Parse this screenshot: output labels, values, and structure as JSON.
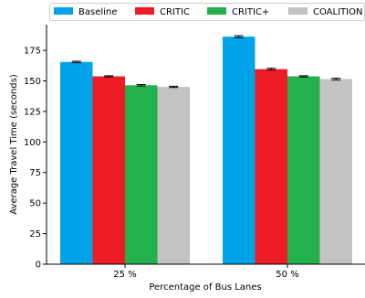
{
  "chart_data": {
    "type": "bar",
    "xlabel": "Percentage of Bus Lanes",
    "ylabel": "Average Travel Time (seconds)",
    "categories": [
      "25 %",
      "50 %"
    ],
    "ylim": [
      0,
      196
    ],
    "yticks": [
      0,
      25,
      50,
      75,
      100,
      125,
      150,
      175
    ],
    "grid": false,
    "legend_position": "top",
    "series": [
      {
        "name": "Baseline",
        "color": "#00a2e8",
        "values": [
          165.5,
          186.2
        ],
        "errors": [
          0.6,
          0.8
        ]
      },
      {
        "name": "CRITIC",
        "color": "#ed1c24",
        "values": [
          153.7,
          159.6
        ],
        "errors": [
          0.5,
          0.7
        ]
      },
      {
        "name": "CRITIC+",
        "color": "#22b14c",
        "values": [
          146.4,
          153.7
        ],
        "errors": [
          0.6,
          0.5
        ]
      },
      {
        "name": "COALITION",
        "color": "#c3c3c3",
        "values": [
          145.1,
          151.5
        ],
        "errors": [
          0.5,
          0.7
        ]
      }
    ]
  }
}
